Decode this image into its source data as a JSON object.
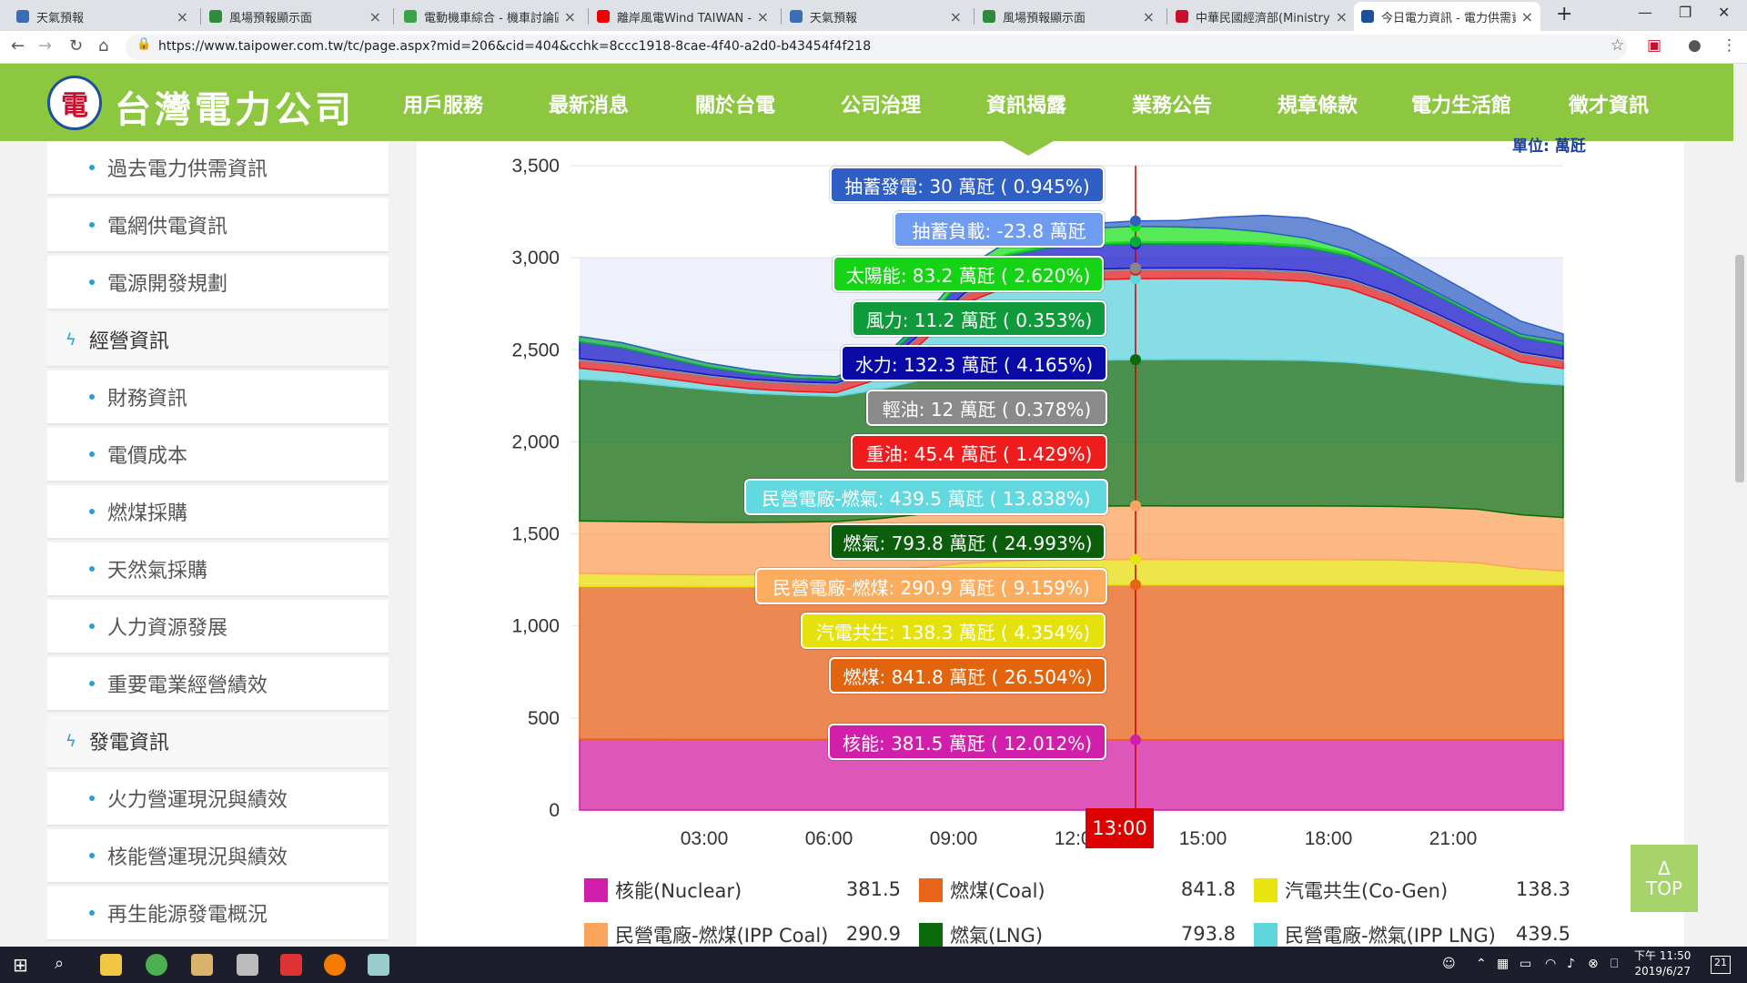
{
  "tabs": [
    {
      "title": "天氣預報",
      "fav": "#3b6db6",
      "icon": "eye-icon"
    },
    {
      "title": "風場預報顯示面",
      "fav": "#2e8b3e",
      "icon": "map-icon"
    },
    {
      "title": "電動機車綜合 - 機車討論區",
      "fav": "#3aa34a",
      "icon": "forum-icon"
    },
    {
      "title": "離岸風電Wind TAIWAN - Y",
      "fav": "#e00",
      "icon": "youtube-icon"
    },
    {
      "title": "天氣預報",
      "fav": "#3b6db6",
      "icon": "eye-icon"
    },
    {
      "title": "風場預報顯示面",
      "fav": "#2e8b3e",
      "icon": "map-icon"
    },
    {
      "title": "中華民國經濟部(Ministry o",
      "fav": "#c8102e",
      "icon": "moea-icon"
    },
    {
      "title": "今日電力資訊 - 電力供需資",
      "fav": "#1d4f9c",
      "icon": "taipower-icon"
    }
  ],
  "url": "https://www.taipower.com.tw/tc/page.aspx?mid=206&cid=404&cchk=8ccc1918-8cae-4f40-a2d0-b43454f4f218",
  "site": {
    "name": "台灣電力公司",
    "logo_text": "電"
  },
  "menu": [
    "用戶服務",
    "最新消息",
    "關於台電",
    "公司治理",
    "資訊揭露",
    "業務公告",
    "規章條款",
    "電力生活館",
    "徵才資訊"
  ],
  "sidebar": [
    {
      "label": "過去電力供需資訊",
      "type": "sub"
    },
    {
      "label": "電網供電資訊",
      "type": "sub"
    },
    {
      "label": "電源開發規劃",
      "type": "sub"
    },
    {
      "label": "經營資訊",
      "type": "cat"
    },
    {
      "label": "財務資訊",
      "type": "sub"
    },
    {
      "label": "電價成本",
      "type": "sub"
    },
    {
      "label": "燃煤採購",
      "type": "sub"
    },
    {
      "label": "天然氣採購",
      "type": "sub"
    },
    {
      "label": "人力資源發展",
      "type": "sub"
    },
    {
      "label": "重要電業經營績效",
      "type": "sub"
    },
    {
      "label": "發電資訊",
      "type": "cat"
    },
    {
      "label": "火力營運現況與績效",
      "type": "sub"
    },
    {
      "label": "核能營運現況與績效",
      "type": "sub"
    },
    {
      "label": "再生能源發電概況",
      "type": "sub"
    }
  ],
  "chart_unit": "單位: 萬瓩",
  "chart_data": {
    "type": "area",
    "stacked": true,
    "ylim": [
      0,
      3500
    ],
    "yticks": [
      0,
      500,
      1000,
      1500,
      2000,
      2500,
      3000,
      3500
    ],
    "xticks": [
      "03:00",
      "06:00",
      "09:00",
      "12:00",
      "15:00",
      "18:00",
      "21:00"
    ],
    "x": [
      "00:00",
      "01:00",
      "02:00",
      "03:00",
      "04:00",
      "05:00",
      "06:00",
      "07:00",
      "08:00",
      "09:00",
      "10:00",
      "11:00",
      "12:00",
      "13:00",
      "14:00",
      "15:00",
      "16:00",
      "17:00",
      "18:00",
      "19:00",
      "20:00",
      "21:00",
      "22:00",
      "23:30"
    ],
    "cursor_time": "13:00",
    "series": [
      {
        "name": "核能(Nuclear)",
        "color": "#d21fab",
        "values": [
          385,
          385,
          384,
          383,
          383,
          383,
          383,
          383,
          383,
          383,
          383,
          382,
          382,
          381.5,
          381,
          381,
          381,
          381,
          381,
          381,
          381,
          381,
          381,
          381
        ]
      },
      {
        "name": "燃煤(Coal)",
        "color": "#e8641b",
        "values": [
          830,
          830,
          830,
          830,
          830,
          830,
          830,
          832,
          835,
          838,
          840,
          841,
          841,
          841.8,
          842,
          842,
          842,
          842,
          842,
          842,
          842,
          842,
          842,
          842
        ]
      },
      {
        "name": "汽電共生(Co-Gen)",
        "color": "#e8e40f",
        "values": [
          70,
          68,
          66,
          65,
          65,
          66,
          68,
          80,
          100,
          120,
          130,
          135,
          137,
          138.3,
          138,
          138,
          138,
          138,
          137,
          135,
          130,
          120,
          90,
          75
        ]
      },
      {
        "name": "民營電廠-燃煤(IPP Coal)",
        "color": "#fba55c",
        "values": [
          285,
          285,
          285,
          285,
          285,
          285,
          286,
          288,
          289,
          290,
          290,
          290.5,
          290.8,
          290.9,
          291,
          291,
          291,
          291,
          291,
          291,
          291,
          291,
          291,
          291
        ]
      },
      {
        "name": "燃氣(LNG)",
        "color": "#0b6b0b",
        "values": [
          770,
          760,
          740,
          720,
          700,
          690,
          680,
          700,
          730,
          760,
          780,
          790,
          792,
          793.8,
          795,
          795,
          793,
          790,
          780,
          760,
          740,
          720,
          720,
          720
        ]
      },
      {
        "name": "民營電廠-燃氣(IPP LNG)",
        "color": "#5fd6dc",
        "values": [
          60,
          50,
          40,
          30,
          25,
          20,
          20,
          60,
          200,
          360,
          420,
          435,
          438,
          439.5,
          440,
          440,
          438,
          430,
          400,
          340,
          260,
          180,
          110,
          90
        ]
      },
      {
        "name": "重油(Oil)",
        "color": "#e81b1b",
        "values": [
          40,
          40,
          40,
          40,
          40,
          40,
          40,
          42,
          44,
          45,
          45,
          45,
          45,
          45.4,
          45,
          45,
          45,
          45,
          45,
          45,
          45,
          45,
          42,
          40
        ]
      },
      {
        "name": "輕油(Diesel)",
        "color": "#888888",
        "values": [
          12,
          12,
          12,
          12,
          12,
          12,
          12,
          12,
          12,
          12,
          12,
          12,
          12,
          12,
          12,
          12,
          12,
          12,
          12,
          12,
          12,
          12,
          12,
          12
        ]
      },
      {
        "name": "水力(Hydro)",
        "color": "#1414c8",
        "values": [
          90,
          80,
          60,
          40,
          30,
          20,
          20,
          25,
          40,
          80,
          110,
          125,
          130,
          132.3,
          130,
          130,
          128,
          125,
          120,
          110,
          100,
          90,
          80,
          75
        ]
      },
      {
        "name": "風力(Wind)",
        "color": "#0aa83a",
        "values": [
          30,
          28,
          25,
          22,
          20,
          18,
          15,
          13,
          12,
          11,
          11,
          11,
          11,
          11.2,
          11,
          11,
          12,
          12,
          13,
          14,
          15,
          16,
          18,
          20
        ]
      },
      {
        "name": "太陽能(Solar)",
        "color": "#16e016",
        "values": [
          0,
          0,
          0,
          0,
          0,
          0,
          0,
          2,
          15,
          40,
          65,
          78,
          82,
          83.2,
          82,
          75,
          60,
          40,
          20,
          5,
          0,
          0,
          0,
          0
        ]
      },
      {
        "name": "抽蓄發電(Pumped Gen)",
        "color": "#2f5fc4",
        "values": [
          0,
          0,
          0,
          0,
          0,
          0,
          0,
          0,
          0,
          0,
          0,
          10,
          25,
          30,
          35,
          60,
          90,
          110,
          115,
          110,
          100,
          90,
          70,
          40
        ]
      }
    ],
    "tooltip": [
      {
        "label": "抽蓄發電: 30 萬瓩 ( 0.945%)",
        "color": "#2f5fc4"
      },
      {
        "label": "抽蓄負載: -23.8 萬瓩",
        "color": "#6f9cf0"
      },
      {
        "label": "太陽能: 83.2 萬瓩 ( 2.620%)",
        "color": "#16d316"
      },
      {
        "label": "風力: 11.2 萬瓩 ( 0.353%)",
        "color": "#0f9b3b"
      },
      {
        "label": "水力: 132.3 萬瓩 ( 4.165%)",
        "color": "#0a0aa6"
      },
      {
        "label": "輕油: 12 萬瓩 ( 0.378%)",
        "color": "#8a8a8a"
      },
      {
        "label": "重油: 45.4 萬瓩 ( 1.429%)",
        "color": "#ee1c1c"
      },
      {
        "label": "民營電廠-燃氣: 439.5 萬瓩 ( 13.838%)",
        "color": "#62d9df"
      },
      {
        "label": "燃氣: 793.8 萬瓩 ( 24.993%)",
        "color": "#0b5e0b"
      },
      {
        "label": "民營電廠-燃煤: 290.9 萬瓩 ( 9.159%)",
        "color": "#fbac5f"
      },
      {
        "label": "汽電共生: 138.3 萬瓩 ( 4.354%)",
        "color": "#e5e10c"
      },
      {
        "label": "燃煤: 841.8 萬瓩 ( 26.504%)",
        "color": "#e2640f"
      },
      {
        "label": "核能: 381.5 萬瓩 ( 12.012%)",
        "color": "#d21fab"
      }
    ],
    "legend": [
      {
        "name": "核能(Nuclear)",
        "value": "381.5",
        "color": "#d21fab"
      },
      {
        "name": "燃煤(Coal)",
        "value": "841.8",
        "color": "#e8641b"
      },
      {
        "name": "汽電共生(Co-Gen)",
        "value": "138.3",
        "color": "#e8e40f"
      },
      {
        "name": "民營電廠-燃煤(IPP Coal)",
        "value": "290.9",
        "color": "#fba55c"
      },
      {
        "name": "燃氣(LNG)",
        "value": "793.8",
        "color": "#0b6b0b"
      },
      {
        "name": "民營電廠-燃氣(IPP LNG)",
        "value": "439.5",
        "color": "#5fd6dc"
      }
    ]
  },
  "top_button": {
    "arrow": "Δ",
    "label": "TOP"
  },
  "clock": {
    "time": "下午 11:50",
    "date": "2019/6/27"
  },
  "notifications": "21"
}
